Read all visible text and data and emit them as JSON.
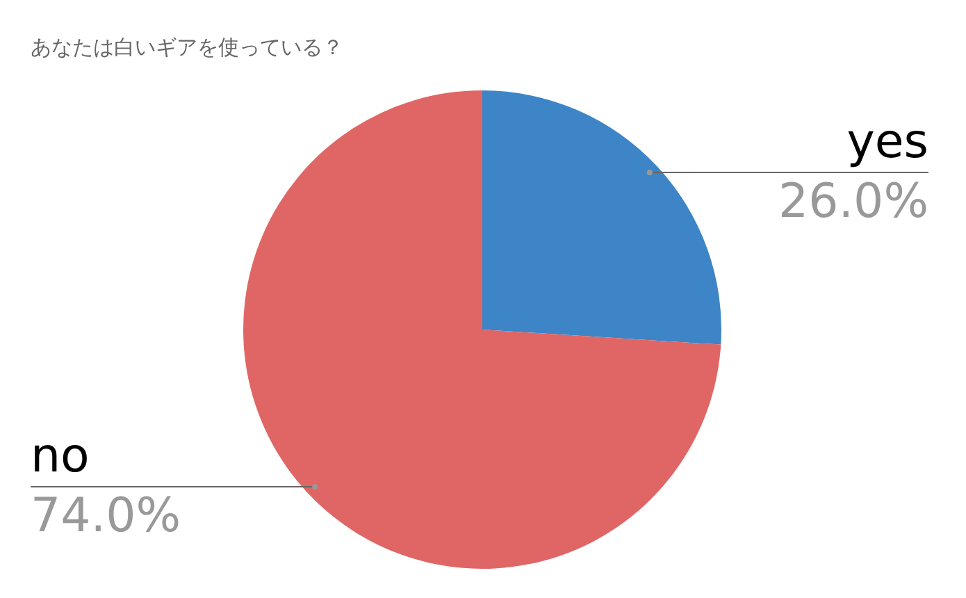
{
  "chart_data": {
    "type": "pie",
    "title": "あなたは白いギアを使っている？",
    "categories": [
      "yes",
      "no"
    ],
    "values": [
      26,
      74
    ],
    "value_labels": [
      "26.0%",
      "74.0%"
    ],
    "colors": [
      "#3d85c6",
      "#e06666"
    ],
    "legend": false
  }
}
